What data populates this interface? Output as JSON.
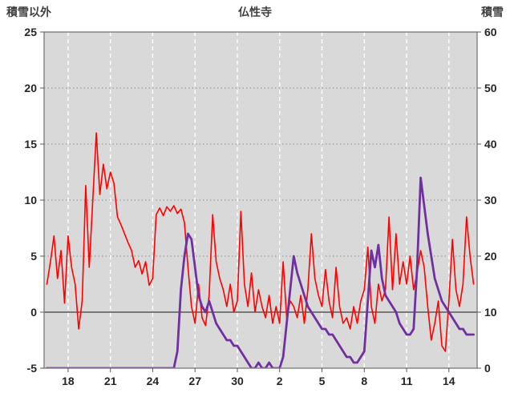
{
  "header": {
    "left_axis_title": "積雪以外",
    "chart_title": "仏性寺",
    "right_axis_title": "積雪"
  },
  "colors": {
    "plot_bg": "#D9D9D9",
    "grid_white": "#FFFFFF",
    "grid_dot": "#8C8C8C",
    "zero_line": "#595959",
    "frame": "#7F7F7F",
    "tick_text": "#262626",
    "header_text": "#3F3F3F",
    "series_red": "#FF0000",
    "series_purple": "#7030A0"
  },
  "chart_data": {
    "type": "line",
    "title": "仏性寺",
    "left_axis": {
      "label": "積雪以外",
      "min": -5,
      "max": 25,
      "ticks": [
        -5,
        0,
        5,
        10,
        15,
        20,
        25
      ]
    },
    "right_axis": {
      "label": "積雪",
      "min": 0,
      "max": 60,
      "ticks": [
        0,
        10,
        20,
        30,
        40,
        50,
        60
      ]
    },
    "x_axis": {
      "min": 16.3,
      "max": 47.0,
      "ticks": [
        18,
        21,
        24,
        27,
        30,
        33,
        36,
        39,
        42,
        45
      ],
      "tick_labels": [
        "18",
        "21",
        "24",
        "27",
        "30",
        "2",
        "5",
        "8",
        "11",
        "14"
      ]
    },
    "grid": {
      "vertical": "white-dashed",
      "horizontal": "dotted",
      "zero_line": "solid"
    },
    "legend": "none",
    "series": [
      {
        "name": "積雪以外",
        "data_name": "temperature-line",
        "axis": "left",
        "color": "#FF0000",
        "width": 1.6,
        "x_start": 16.5,
        "x_step": 0.25,
        "values": [
          2.5,
          4.5,
          6.8,
          3.0,
          5.5,
          0.8,
          6.8,
          4.0,
          2.5,
          -1.5,
          1.0,
          11.3,
          4.0,
          10.0,
          16.0,
          10.5,
          13.2,
          11.0,
          12.5,
          11.5,
          8.5,
          7.8,
          7.0,
          6.2,
          5.5,
          4.0,
          4.6,
          3.4,
          4.5,
          2.4,
          3.0,
          8.7,
          9.3,
          8.6,
          9.4,
          9.0,
          9.5,
          8.8,
          9.2,
          8.0,
          4.0,
          0.5,
          -1.0,
          2.5,
          -0.5,
          -1.2,
          1.5,
          8.7,
          4.5,
          3.0,
          2.0,
          0.5,
          2.5,
          0.0,
          1.0,
          9.0,
          2.5,
          0.5,
          3.5,
          0.0,
          2.0,
          0.5,
          -0.5,
          1.5,
          -1.0,
          0.5,
          -1.0,
          4.5,
          -0.5,
          1.0,
          0.5,
          -0.5,
          1.5,
          -1.0,
          2.0,
          7.0,
          3.0,
          1.5,
          0.5,
          3.8,
          1.0,
          -0.5,
          4.0,
          0.5,
          -1.0,
          -0.5,
          -1.5,
          0.5,
          -1.0,
          1.0,
          2.0,
          5.8,
          0.5,
          -1.0,
          2.5,
          1.0,
          2.0,
          8.5,
          2.0,
          7.0,
          2.5,
          4.5,
          2.5,
          5.0,
          2.0,
          3.5,
          5.5,
          4.0,
          0.5,
          -2.5,
          -1.0,
          1.0,
          -3.0,
          -3.5,
          1.0,
          6.5,
          2.0,
          0.5,
          2.5,
          8.5,
          5.0,
          2.5
        ]
      },
      {
        "name": "積雪",
        "data_name": "snow-depth-line",
        "axis": "right",
        "color": "#7030A0",
        "width": 2.8,
        "x_start": 16.5,
        "x_step": 0.25,
        "values": [
          0,
          0,
          0,
          0,
          0,
          0,
          0,
          0,
          0,
          0,
          0,
          0,
          0,
          0,
          0,
          0,
          0,
          0,
          0,
          0,
          0,
          0,
          0,
          0,
          0,
          0,
          0,
          0,
          0,
          0,
          0,
          0,
          0,
          0,
          0,
          0,
          0,
          3,
          14,
          20,
          24,
          23,
          18,
          13,
          11,
          10,
          12,
          10,
          8,
          7,
          6,
          5,
          5,
          4,
          4,
          3,
          2,
          1,
          0,
          0,
          1,
          0,
          0,
          1,
          0,
          0,
          0,
          2,
          8,
          14,
          20,
          17,
          15,
          13,
          11,
          10,
          9,
          8,
          7,
          7,
          6,
          6,
          5,
          4,
          3,
          2,
          2,
          1,
          1,
          2,
          3,
          12,
          21,
          18,
          22,
          16,
          13,
          12,
          11,
          10,
          8,
          7,
          6,
          6,
          7,
          18,
          34,
          29,
          24,
          20,
          16,
          14,
          12,
          11,
          10,
          9,
          8,
          7,
          7,
          6,
          6,
          6
        ]
      }
    ]
  }
}
